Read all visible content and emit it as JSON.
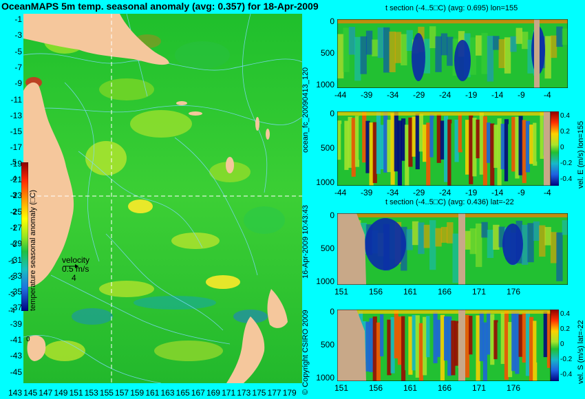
{
  "title": "OceanMAPS 5m temp. seasonal anomaly (avg: 0.357) for 18-Apr-2009",
  "map": {
    "lat_ticks": [
      "-1",
      "-3",
      "-5",
      "-7",
      "-9",
      "-11",
      "-13",
      "-15",
      "-17",
      "-19",
      "-21",
      "-23",
      "-25",
      "-27",
      "-29",
      "-31",
      "-33",
      "-35",
      "-37",
      "-39",
      "-41",
      "-43",
      "-45"
    ],
    "lon_ticks": [
      "143",
      "145",
      "147",
      "149",
      "151",
      "153",
      "155",
      "157",
      "159",
      "161",
      "163",
      "165",
      "167",
      "169",
      "171",
      "173",
      "175",
      "177",
      "179"
    ],
    "colorbar_label": "temperature seasonal anomaly (□C)",
    "colorbar_ticks": [
      "5",
      "4",
      "3",
      "2",
      "1",
      "0",
      "-1",
      "-2",
      "-3",
      "-4"
    ],
    "velocity_label": "velocity",
    "velocity_value": "0.5 m/s",
    "velocity_count": "4",
    "marker_label": "0",
    "colors": {
      "land": "#f5c79c",
      "ocean": "#22c032",
      "contour": "#7fd8ff"
    }
  },
  "panels": [
    {
      "title": "t section (-4..5□C) (avg: 0.695) lon=155",
      "y_ticks": [
        "0",
        "500",
        "1000"
      ],
      "x_ticks": [
        "-44",
        "-39",
        "-34",
        "-29",
        "-24",
        "-19",
        "-14",
        "-9",
        "-4"
      ]
    },
    {
      "title": "",
      "y_ticks": [
        "0",
        "500",
        "1000"
      ],
      "x_ticks": [
        "-44",
        "-39",
        "-34",
        "-29",
        "-24",
        "-19",
        "-14",
        "-9",
        "-4"
      ],
      "cbar_label": "vel. E (m/s) lon=155",
      "cbar_ticks": [
        "0.4",
        "0.2",
        "0",
        "-0.2",
        "-0.4"
      ]
    },
    {
      "title": "t section (-4..5□C) (avg: 0.436) lat=-22",
      "y_ticks": [
        "0",
        "500",
        "1000"
      ],
      "x_ticks": [
        "151",
        "156",
        "161",
        "166",
        "171",
        "176"
      ]
    },
    {
      "title": "",
      "y_ticks": [
        "0",
        "500",
        "1000"
      ],
      "x_ticks": [
        "151",
        "156",
        "161",
        "166",
        "171",
        "176"
      ],
      "cbar_label": "vel. S (m/s) lat=-22",
      "cbar_ticks": [
        "0.4",
        "0.2",
        "0",
        "-0.2",
        "-0.4"
      ]
    }
  ],
  "side_labels": {
    "model": "ocean_fc_20090413_120",
    "date": "16-Apr-2009 10:43:43",
    "copyright": "© Copyright CSIRO 2009"
  }
}
